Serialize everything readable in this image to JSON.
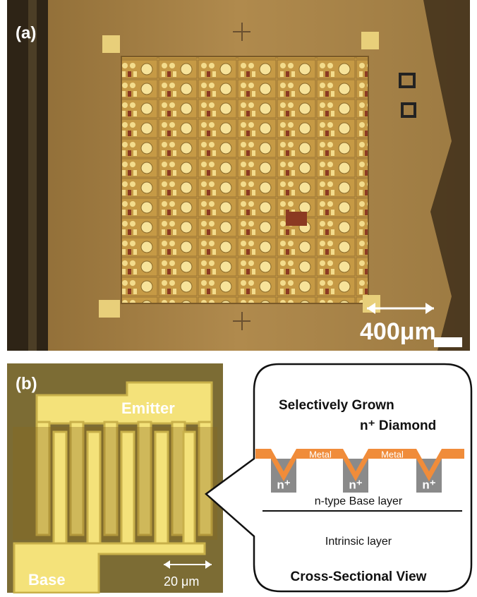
{
  "panel_a": {
    "label": "(a)",
    "scale_bar": "400μm"
  },
  "panel_b": {
    "label": "(b)",
    "emitter": "Emitter",
    "base": "Base",
    "scale_bar": "20 μm"
  },
  "cross_section": {
    "title_line1": "Selectively Grown",
    "title_line2": "n⁺ Diamond",
    "metal_labels": [
      "Metal",
      "Metal"
    ],
    "n_plus_labels": [
      "n⁺",
      "n⁺",
      "n⁺"
    ],
    "base_layer": "n-type Base layer",
    "intrinsic_layer": "Intrinsic layer",
    "caption": "Cross-Sectional View"
  }
}
